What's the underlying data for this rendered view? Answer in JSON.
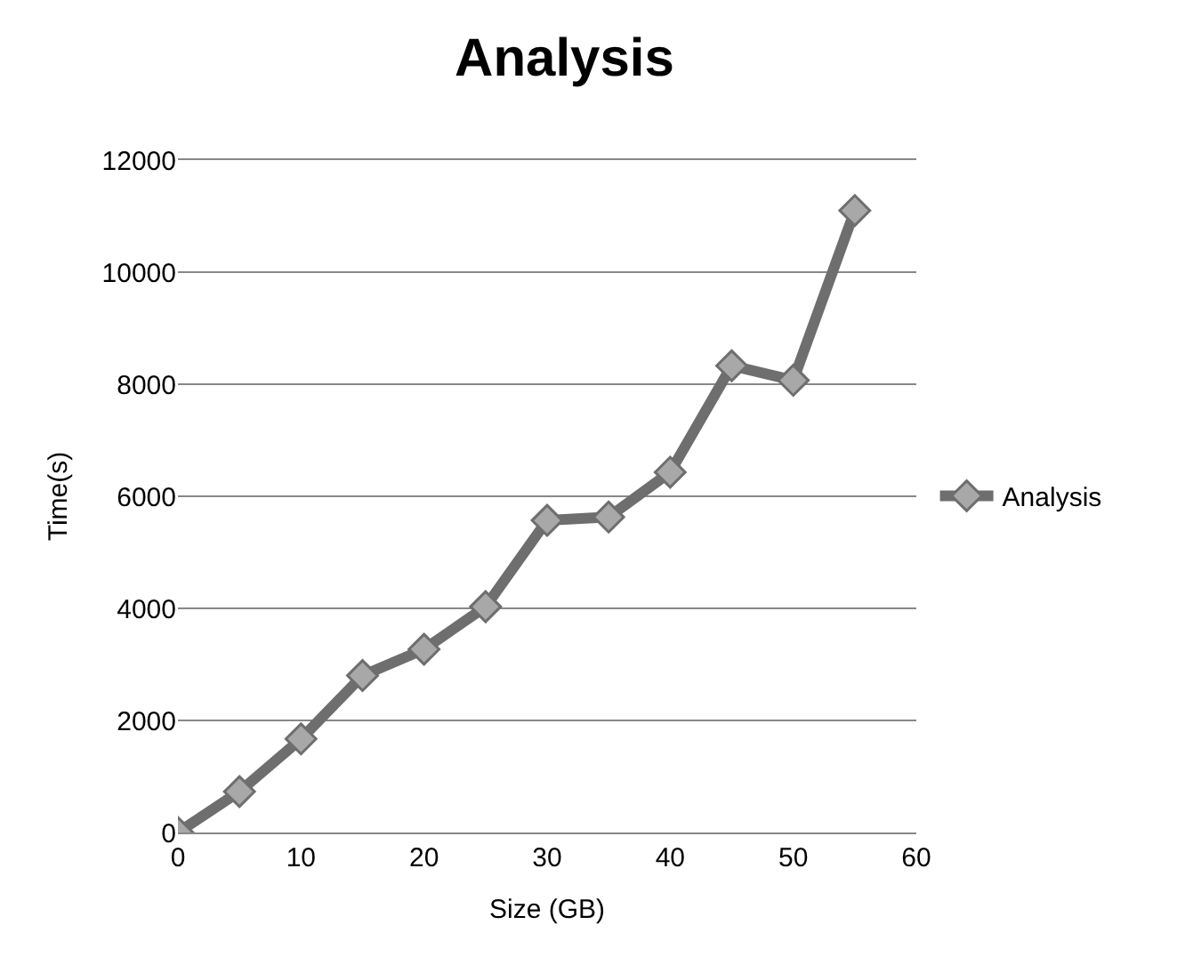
{
  "chart_data": {
    "type": "line",
    "title": "Analysis",
    "xlabel": "Size (GB)",
    "ylabel": "Time(s)",
    "x": [
      0,
      5,
      10,
      15,
      20,
      25,
      30,
      35,
      40,
      45,
      50,
      55
    ],
    "series": [
      {
        "name": "Analysis",
        "color": "#6e6e6e",
        "values": [
          0,
          730,
          1670,
          2800,
          3270,
          4030,
          5570,
          5630,
          6430,
          8330,
          8070,
          11100
        ]
      }
    ],
    "xlim": [
      0,
      60
    ],
    "xticks": [
      0,
      10,
      20,
      30,
      40,
      50,
      60
    ],
    "ylim": [
      0,
      12000
    ],
    "yticks": [
      0,
      2000,
      4000,
      6000,
      8000,
      10000,
      12000
    ],
    "grid": "y",
    "legend": "right",
    "marker": "diamond",
    "line_style": "solid"
  }
}
